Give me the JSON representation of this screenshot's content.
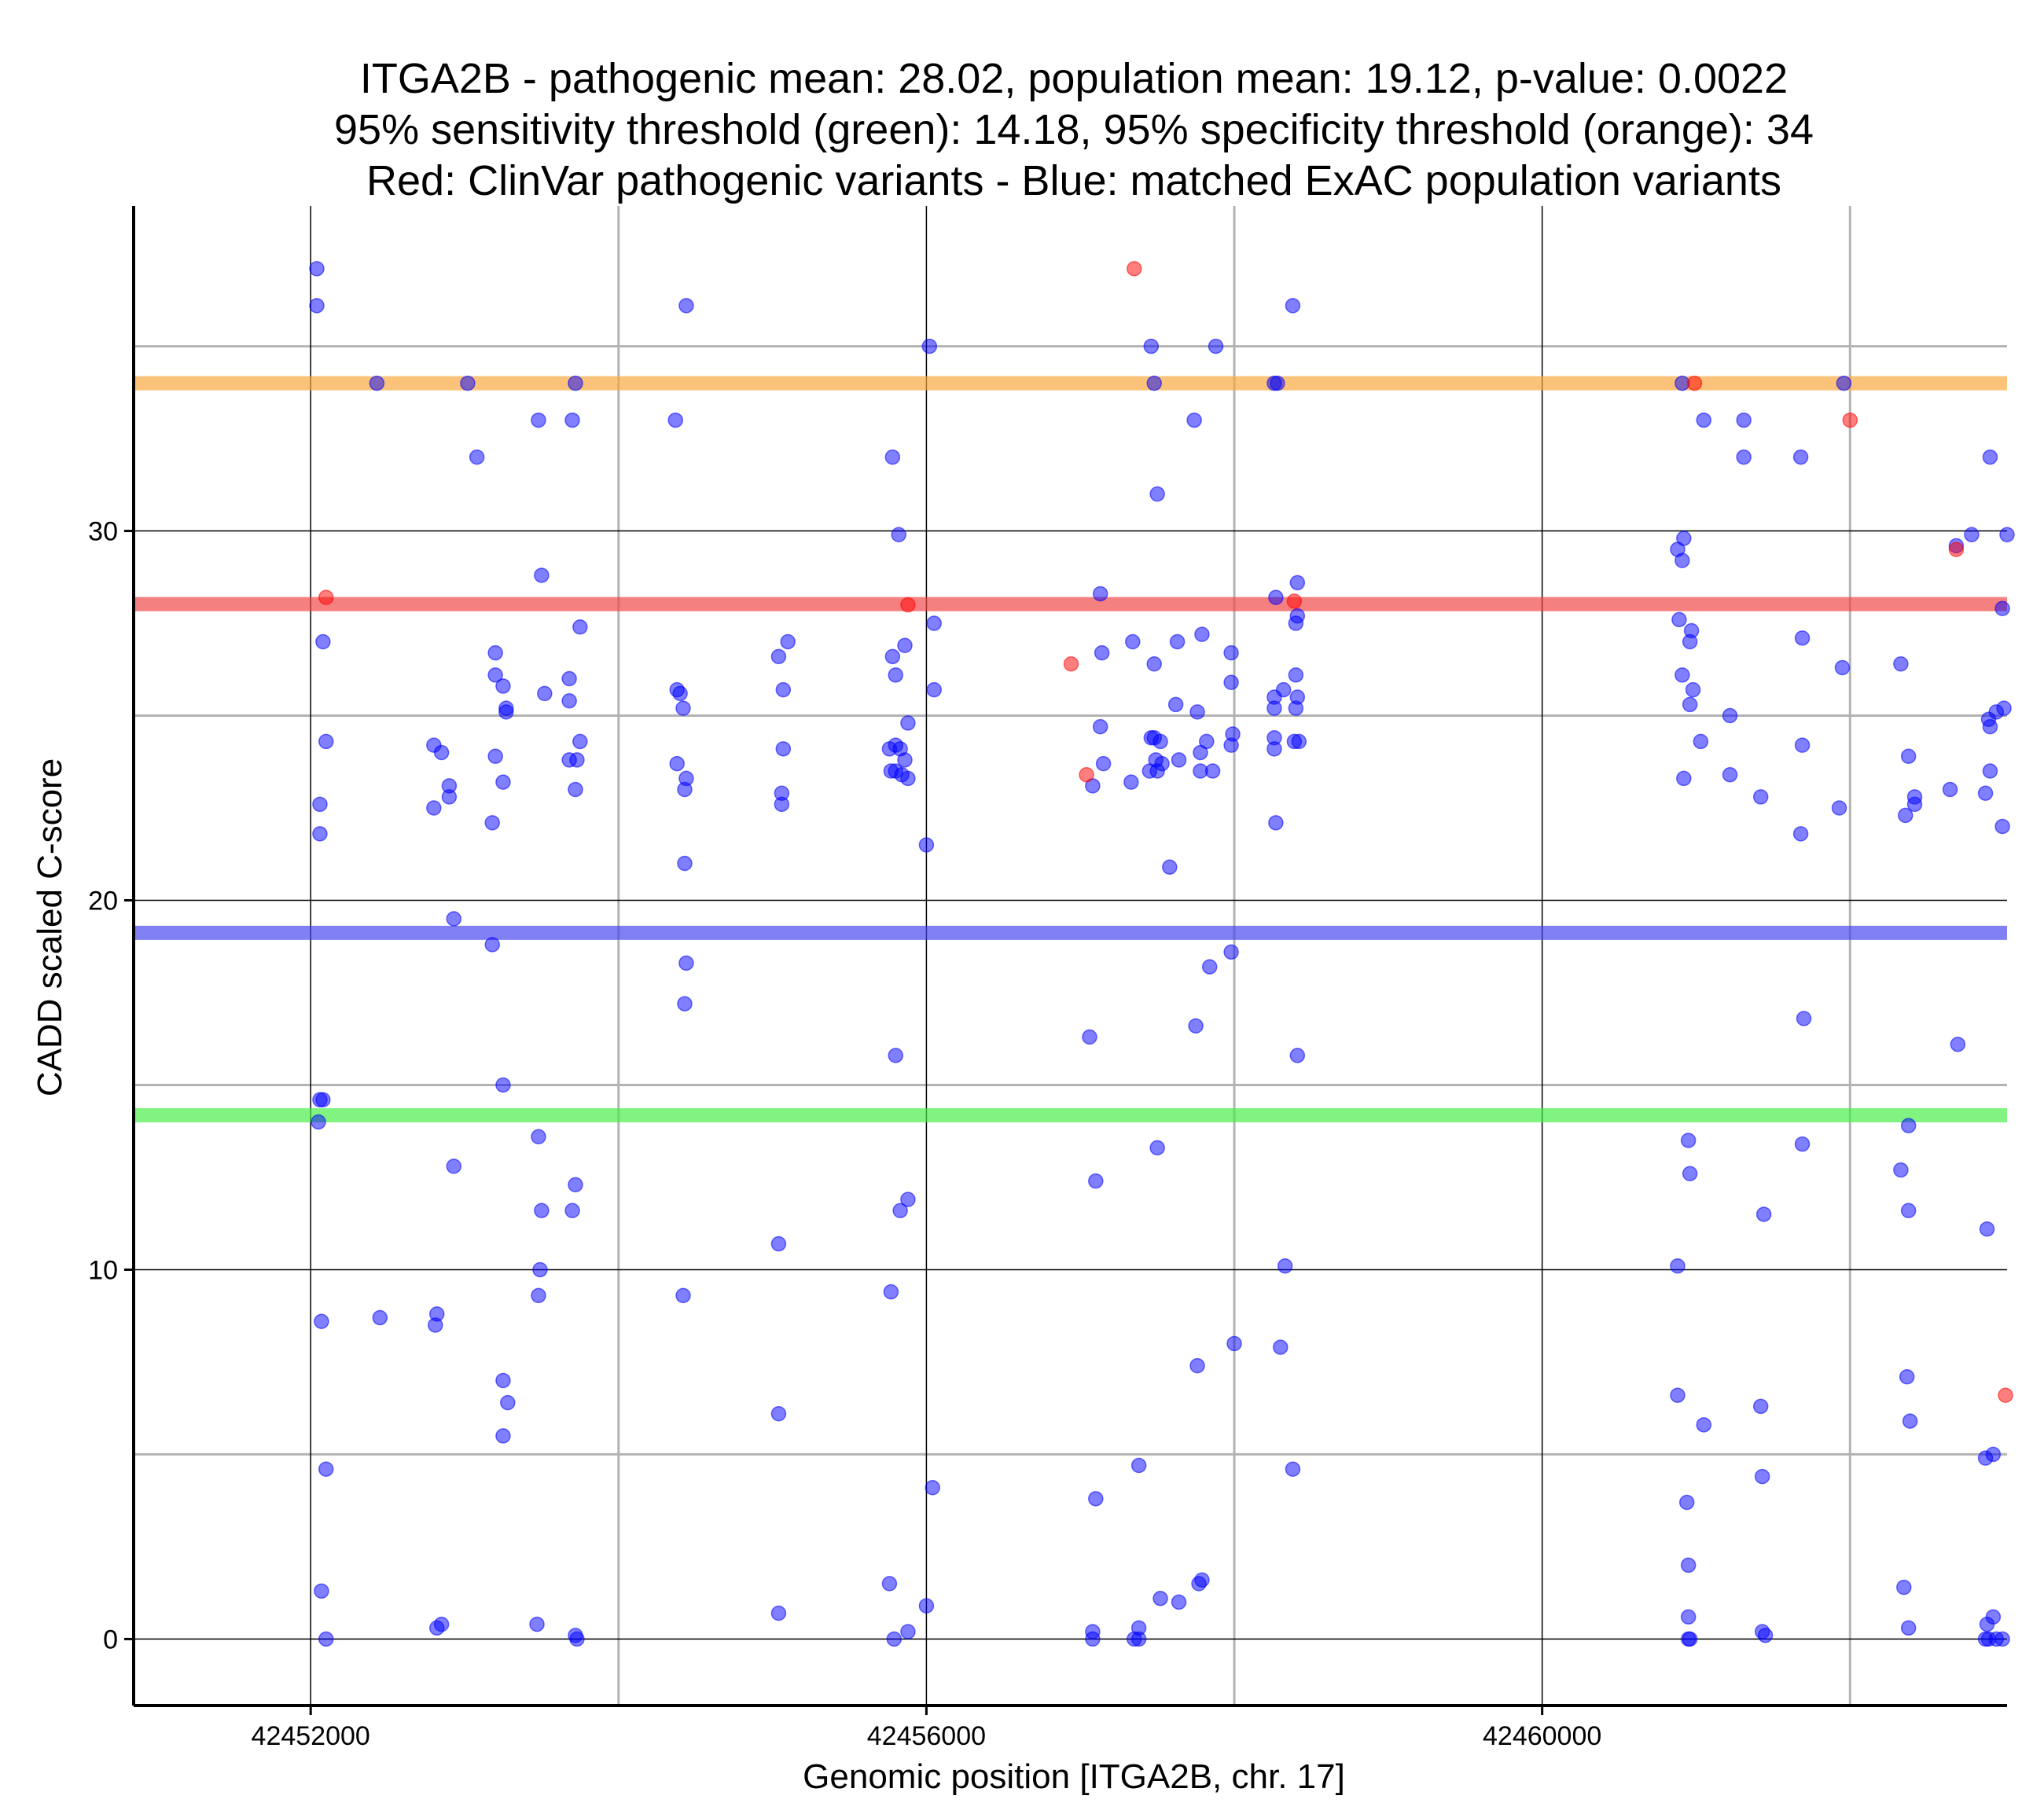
{
  "chart_data": {
    "type": "scatter",
    "title": [
      "ITGA2B - pathogenic mean: 28.02, population mean: 19.12, p-value: 0.0022",
      "95% sensitivity threshold (green): 14.18, 95% specificity threshold (orange): 34",
      "Red: ClinVar pathogenic variants - Blue: matched ExAC population variants"
    ],
    "xlabel": "Genomic position [ITGA2B, chr. 17]",
    "ylabel": "CADD scaled C-score",
    "xlim": [
      42450850,
      42463020
    ],
    "ylim": [
      -1.8,
      38.8
    ],
    "x_major_ticks": [
      42452000,
      42456000,
      42460000
    ],
    "x_tick_labels": [
      "42452000",
      "42456000",
      "42460000"
    ],
    "x_minor_gridlines": [
      42454000,
      42458000,
      42462000
    ],
    "y_major_ticks": [
      0,
      10,
      20,
      30
    ],
    "y_tick_labels": [
      "0",
      "10",
      "20",
      "30"
    ],
    "y_minor_gridlines": [
      5,
      15,
      25,
      35
    ],
    "grid": true,
    "reference_lines": [
      {
        "value": 34,
        "color": "#f7a63a"
      },
      {
        "value": 28.02,
        "color": "#f04444"
      },
      {
        "value": 19.12,
        "color": "#4444ee"
      },
      {
        "value": 14.18,
        "color": "#44ee44"
      }
    ],
    "series": [
      {
        "name": "ClinVar pathogenic variants",
        "color": "#ff0000",
        "points": [
          [
            42452100,
            28.2
          ],
          [
            42457350,
            37.1
          ],
          [
            42456940,
            26.4
          ],
          [
            42457040,
            23.4
          ],
          [
            42455880,
            28.0
          ],
          [
            42458390,
            28.1
          ],
          [
            42460990,
            34.0
          ],
          [
            42462690,
            29.5
          ],
          [
            42462000,
            33.0
          ],
          [
            42463010,
            6.6
          ]
        ]
      },
      {
        "name": "matched ExAC population variants",
        "color": "#0000ff",
        "points": [
          [
            42452040,
            37.1
          ],
          [
            42452040,
            36.1
          ],
          [
            42452080,
            27.0
          ],
          [
            42452100,
            24.3
          ],
          [
            42452060,
            22.6
          ],
          [
            42452060,
            21.8
          ],
          [
            42452060,
            14.6
          ],
          [
            42452080,
            14.6
          ],
          [
            42452050,
            14.0
          ],
          [
            42452070,
            8.6
          ],
          [
            42452100,
            4.6
          ],
          [
            42452070,
            1.3
          ],
          [
            42452100,
            0.0
          ],
          [
            42452430,
            34.0
          ],
          [
            42452450,
            8.7
          ],
          [
            42452820,
            8.8
          ],
          [
            42452810,
            8.5
          ],
          [
            42452820,
            0.3
          ],
          [
            42452850,
            0.4
          ],
          [
            42452800,
            24.2
          ],
          [
            42452850,
            24.0
          ],
          [
            42452800,
            22.5
          ],
          [
            42452900,
            23.1
          ],
          [
            42452900,
            22.8
          ],
          [
            42452930,
            19.5
          ],
          [
            42452930,
            12.8
          ],
          [
            42453020,
            34.0
          ],
          [
            42453080,
            32.0
          ],
          [
            42453200,
            26.7
          ],
          [
            42453200,
            26.1
          ],
          [
            42453250,
            25.8
          ],
          [
            42453270,
            25.2
          ],
          [
            42453270,
            25.1
          ],
          [
            42453200,
            23.9
          ],
          [
            42453250,
            23.2
          ],
          [
            42453180,
            22.1
          ],
          [
            42453180,
            18.8
          ],
          [
            42453250,
            15.0
          ],
          [
            42453250,
            7.0
          ],
          [
            42453280,
            6.4
          ],
          [
            42453250,
            5.5
          ],
          [
            42453480,
            33.0
          ],
          [
            42453700,
            33.0
          ],
          [
            42453500,
            28.8
          ],
          [
            42453520,
            25.6
          ],
          [
            42453680,
            26.0
          ],
          [
            42453680,
            25.4
          ],
          [
            42453750,
            27.4
          ],
          [
            42453750,
            24.3
          ],
          [
            42453680,
            23.8
          ],
          [
            42453730,
            23.8
          ],
          [
            42453720,
            23.0
          ],
          [
            42453480,
            13.6
          ],
          [
            42453500,
            11.6
          ],
          [
            42453700,
            11.6
          ],
          [
            42453720,
            12.3
          ],
          [
            42453490,
            10.0
          ],
          [
            42453480,
            9.3
          ],
          [
            42453470,
            0.4
          ],
          [
            42453720,
            0.1
          ],
          [
            42453730,
            0.0
          ],
          [
            42453720,
            34.0
          ],
          [
            42454370,
            33.0
          ],
          [
            42454440,
            36.1
          ],
          [
            42454380,
            25.7
          ],
          [
            42454400,
            25.6
          ],
          [
            42454420,
            25.2
          ],
          [
            42454380,
            23.7
          ],
          [
            42454440,
            23.3
          ],
          [
            42454430,
            23.0
          ],
          [
            42454430,
            21.0
          ],
          [
            42454440,
            18.3
          ],
          [
            42454430,
            17.2
          ],
          [
            42454420,
            9.3
          ],
          [
            42455040,
            26.6
          ],
          [
            42455100,
            27.0
          ],
          [
            42455070,
            25.7
          ],
          [
            42455070,
            24.1
          ],
          [
            42455060,
            22.9
          ],
          [
            42455060,
            22.6
          ],
          [
            42455040,
            10.7
          ],
          [
            42455040,
            6.1
          ],
          [
            42455040,
            0.7
          ],
          [
            42455780,
            32.0
          ],
          [
            42455820,
            29.9
          ],
          [
            42455780,
            26.6
          ],
          [
            42455800,
            26.1
          ],
          [
            42455860,
            26.9
          ],
          [
            42455880,
            24.8
          ],
          [
            42455760,
            24.1
          ],
          [
            42455800,
            24.2
          ],
          [
            42455830,
            24.1
          ],
          [
            42455770,
            23.5
          ],
          [
            42455800,
            23.5
          ],
          [
            42455840,
            23.4
          ],
          [
            42455880,
            23.3
          ],
          [
            42455860,
            23.8
          ],
          [
            42455800,
            15.8
          ],
          [
            42455830,
            11.6
          ],
          [
            42455880,
            11.9
          ],
          [
            42455770,
            9.4
          ],
          [
            42455760,
            1.5
          ],
          [
            42455790,
            0.0
          ],
          [
            42455880,
            0.2
          ],
          [
            42456020,
            35.0
          ],
          [
            42456050,
            27.5
          ],
          [
            42456050,
            25.7
          ],
          [
            42456000,
            21.5
          ],
          [
            42456040,
            4.1
          ],
          [
            42456000,
            0.9
          ],
          [
            42457130,
            28.3
          ],
          [
            42457140,
            26.7
          ],
          [
            42457130,
            24.7
          ],
          [
            42457150,
            23.7
          ],
          [
            42457080,
            23.1
          ],
          [
            42457060,
            16.3
          ],
          [
            42457100,
            12.4
          ],
          [
            42457100,
            3.8
          ],
          [
            42457080,
            0.2
          ],
          [
            42457080,
            0.0
          ],
          [
            42457340,
            27.0
          ],
          [
            42457460,
            35.0
          ],
          [
            42457480,
            34.0
          ],
          [
            42457500,
            31.0
          ],
          [
            42457480,
            26.4
          ],
          [
            42457460,
            24.4
          ],
          [
            42457480,
            24.4
          ],
          [
            42457520,
            24.3
          ],
          [
            42457490,
            23.8
          ],
          [
            42457530,
            23.7
          ],
          [
            42457450,
            23.5
          ],
          [
            42457500,
            23.5
          ],
          [
            42457330,
            23.2
          ],
          [
            42457580,
            20.9
          ],
          [
            42457500,
            13.3
          ],
          [
            42457380,
            4.7
          ],
          [
            42457380,
            0.3
          ],
          [
            42457350,
            0.0
          ],
          [
            42457380,
            0.0
          ],
          [
            42457520,
            1.1
          ],
          [
            42457640,
            1.0
          ],
          [
            42457770,
            1.5
          ],
          [
            42457790,
            1.6
          ],
          [
            42457630,
            27.0
          ],
          [
            42457790,
            27.2
          ],
          [
            42457620,
            25.3
          ],
          [
            42457760,
            25.1
          ],
          [
            42457640,
            23.8
          ],
          [
            42457820,
            24.3
          ],
          [
            42457780,
            24.0
          ],
          [
            42457780,
            23.5
          ],
          [
            42457860,
            23.5
          ],
          [
            42457840,
            18.2
          ],
          [
            42457750,
            16.6
          ],
          [
            42457760,
            7.4
          ],
          [
            42457740,
            33.0
          ],
          [
            42457880,
            35.0
          ],
          [
            42457980,
            26.7
          ],
          [
            42457980,
            25.9
          ],
          [
            42457990,
            24.5
          ],
          [
            42457980,
            24.2
          ],
          [
            42457980,
            18.6
          ],
          [
            42458000,
            8.0
          ],
          [
            42458260,
            34.0
          ],
          [
            42458280,
            34.0
          ],
          [
            42458270,
            28.2
          ],
          [
            42458260,
            25.5
          ],
          [
            42458260,
            25.2
          ],
          [
            42458260,
            24.4
          ],
          [
            42458260,
            24.1
          ],
          [
            42458270,
            22.1
          ],
          [
            42458320,
            25.7
          ],
          [
            42458330,
            10.1
          ],
          [
            42458300,
            7.9
          ],
          [
            42458380,
            36.1
          ],
          [
            42458410,
            28.6
          ],
          [
            42458410,
            27.7
          ],
          [
            42458400,
            27.5
          ],
          [
            42458400,
            26.1
          ],
          [
            42458410,
            25.5
          ],
          [
            42458400,
            25.2
          ],
          [
            42458390,
            24.3
          ],
          [
            42458420,
            24.3
          ],
          [
            42458410,
            15.8
          ],
          [
            42458380,
            4.6
          ],
          [
            42460910,
            34.0
          ],
          [
            42460880,
            29.5
          ],
          [
            42460920,
            29.8
          ],
          [
            42460910,
            29.2
          ],
          [
            42460890,
            27.6
          ],
          [
            42460970,
            27.3
          ],
          [
            42460960,
            27.0
          ],
          [
            42460910,
            26.1
          ],
          [
            42460980,
            25.7
          ],
          [
            42460960,
            25.3
          ],
          [
            42461030,
            24.3
          ],
          [
            42460920,
            23.3
          ],
          [
            42460950,
            13.5
          ],
          [
            42460960,
            12.6
          ],
          [
            42460880,
            10.1
          ],
          [
            42460880,
            6.6
          ],
          [
            42461050,
            5.8
          ],
          [
            42460940,
            3.7
          ],
          [
            42460950,
            2.0
          ],
          [
            42460950,
            0.6
          ],
          [
            42460950,
            0.0
          ],
          [
            42460960,
            0.0
          ],
          [
            42461050,
            33.0
          ],
          [
            42461310,
            33.0
          ],
          [
            42461310,
            32.0
          ],
          [
            42461220,
            25.0
          ],
          [
            42461220,
            23.4
          ],
          [
            42461420,
            22.8
          ],
          [
            42461440,
            11.5
          ],
          [
            42461420,
            6.3
          ],
          [
            42461430,
            4.4
          ],
          [
            42461430,
            0.2
          ],
          [
            42461450,
            0.1
          ],
          [
            42461680,
            32.0
          ],
          [
            42461690,
            27.1
          ],
          [
            42461690,
            24.2
          ],
          [
            42461680,
            21.8
          ],
          [
            42461700,
            16.8
          ],
          [
            42461690,
            13.4
          ],
          [
            42461950,
            26.3
          ],
          [
            42461930,
            22.5
          ],
          [
            42461960,
            34.0
          ],
          [
            42462330,
            26.4
          ],
          [
            42462380,
            23.9
          ],
          [
            42462420,
            22.8
          ],
          [
            42462420,
            22.6
          ],
          [
            42462360,
            22.3
          ],
          [
            42462380,
            13.9
          ],
          [
            42462330,
            12.7
          ],
          [
            42462380,
            11.6
          ],
          [
            42462370,
            7.1
          ],
          [
            42462390,
            5.9
          ],
          [
            42462350,
            1.4
          ],
          [
            42462380,
            0.3
          ],
          [
            42462690,
            29.6
          ],
          [
            42462790,
            29.9
          ],
          [
            42462650,
            23.0
          ],
          [
            42462700,
            16.1
          ],
          [
            42462910,
            32.0
          ],
          [
            42462900,
            24.9
          ],
          [
            42462910,
            24.7
          ],
          [
            42462950,
            25.1
          ],
          [
            42463000,
            25.2
          ],
          [
            42463020,
            29.9
          ],
          [
            42462990,
            27.9
          ],
          [
            42462910,
            23.5
          ],
          [
            42462880,
            22.9
          ],
          [
            42462990,
            22.0
          ],
          [
            42462890,
            11.1
          ],
          [
            42462880,
            4.9
          ],
          [
            42462930,
            5.0
          ],
          [
            42462890,
            0.4
          ],
          [
            42462930,
            0.6
          ],
          [
            42462880,
            0.0
          ],
          [
            42462900,
            0.0
          ],
          [
            42462950,
            0.0
          ],
          [
            42462990,
            0.0
          ]
        ]
      }
    ]
  }
}
